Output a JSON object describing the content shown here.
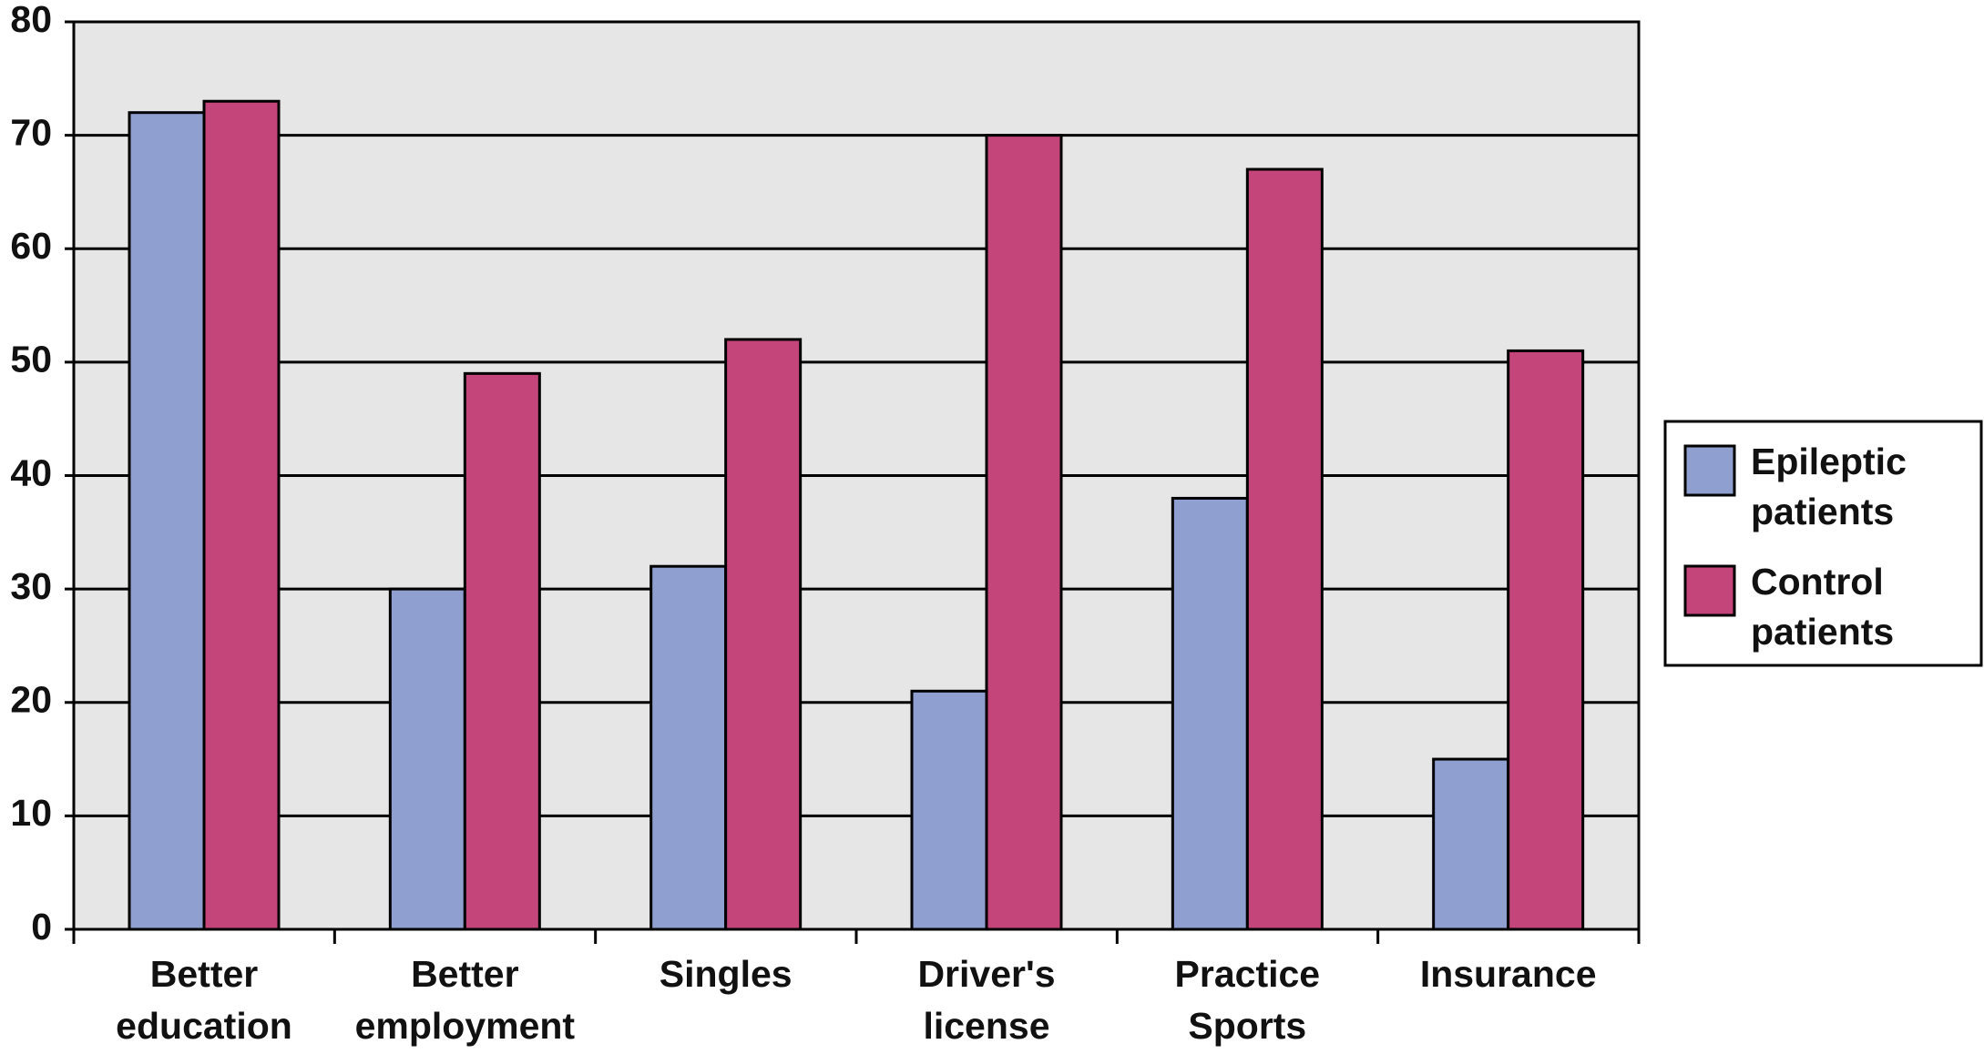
{
  "chart_data": {
    "type": "bar",
    "categories": [
      "Better education",
      "Better employment",
      "Singles",
      "Driver's license",
      "Practice Sports",
      "Insurance"
    ],
    "series": [
      {
        "name": "Epileptic patients",
        "color": "#8fa0d0",
        "values": [
          72,
          30,
          32,
          21,
          38,
          15
        ]
      },
      {
        "name": "Control patients",
        "color": "#c4457a",
        "values": [
          73,
          49,
          52,
          70,
          67,
          51
        ]
      }
    ],
    "ylim": [
      0,
      80
    ],
    "yticks": [
      0,
      10,
      20,
      30,
      40,
      50,
      60,
      70,
      80
    ],
    "grid": true,
    "legend": "right"
  }
}
